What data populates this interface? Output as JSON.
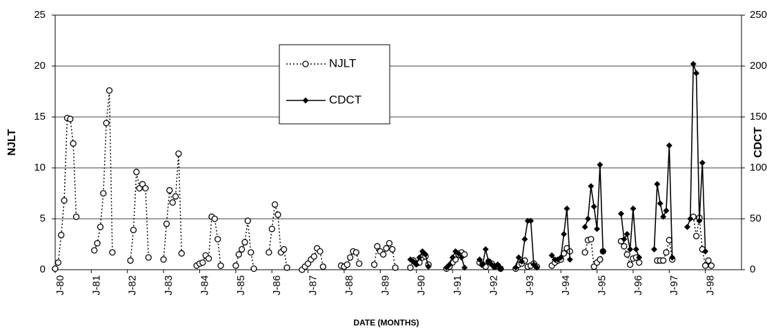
{
  "chart_data": {
    "type": "line",
    "xlabel": "DATE (MONTHS)",
    "ylabel": "NJLT",
    "y2label": "CDCT",
    "xlim": [
      0,
      228
    ],
    "xticks": [
      {
        "value": 0,
        "label": "J-80"
      },
      {
        "value": 12,
        "label": "J-81"
      },
      {
        "value": 24,
        "label": "J-82"
      },
      {
        "value": 36,
        "label": "J-83"
      },
      {
        "value": 48,
        "label": "J-84"
      },
      {
        "value": 60,
        "label": "J-85"
      },
      {
        "value": 72,
        "label": "J-86"
      },
      {
        "value": 84,
        "label": "J-87"
      },
      {
        "value": 96,
        "label": "J-88"
      },
      {
        "value": 108,
        "label": "J-89"
      },
      {
        "value": 120,
        "label": "J-90"
      },
      {
        "value": 132,
        "label": "J-91"
      },
      {
        "value": 144,
        "label": "J-92"
      },
      {
        "value": 156,
        "label": "J-93"
      },
      {
        "value": 168,
        "label": "J-94"
      },
      {
        "value": 180,
        "label": "J-95"
      },
      {
        "value": 192,
        "label": "J-96"
      },
      {
        "value": 204,
        "label": "J-97"
      },
      {
        "value": 216,
        "label": "J-98"
      }
    ],
    "ylim": [
      0,
      25
    ],
    "yticks": [
      0,
      5,
      10,
      15,
      20,
      25
    ],
    "y2lim": [
      0,
      250
    ],
    "y2ticks": [
      0,
      50,
      100,
      150,
      200,
      250
    ],
    "grid": true,
    "legend": "top-center",
    "series": [
      {
        "name": "NJLT",
        "color": "#000000",
        "line_style": "dotted",
        "marker": "circle",
        "x": [
          0,
          1,
          2,
          3,
          4,
          5,
          6,
          7,
          null,
          13,
          14,
          15,
          16,
          17,
          18,
          19,
          null,
          25,
          26,
          27,
          28,
          29,
          30,
          31,
          null,
          36,
          37,
          38,
          39,
          40,
          41,
          42,
          null,
          47,
          48,
          49,
          50,
          51,
          52,
          53,
          54,
          55,
          null,
          60,
          61,
          62,
          63,
          64,
          65,
          66,
          null,
          71,
          72,
          73,
          74,
          75,
          76,
          77,
          null,
          82,
          83,
          84,
          85,
          86,
          87,
          88,
          89,
          null,
          95,
          96,
          97,
          98,
          99,
          100,
          101,
          null,
          106,
          107,
          108,
          109,
          110,
          111,
          112,
          113,
          null,
          118,
          119,
          120,
          121,
          122,
          123,
          124,
          null,
          130,
          131,
          132,
          133,
          134,
          135,
          136,
          null,
          141,
          142,
          143,
          144,
          145,
          146,
          147,
          148,
          null,
          153,
          154,
          155,
          156,
          157,
          158,
          159,
          160,
          null,
          165,
          166,
          167,
          168,
          169,
          170,
          171,
          null,
          176,
          177,
          178,
          179,
          180,
          181,
          182,
          null,
          188,
          189,
          190,
          191,
          192,
          193,
          194,
          null,
          200,
          201,
          202,
          203,
          204,
          205,
          null,
          212,
          213,
          214,
          215,
          216,
          217,
          218
        ],
        "values": [
          0.1,
          0.7,
          3.4,
          6.8,
          14.9,
          14.8,
          12.4,
          5.2,
          null,
          1.9,
          2.6,
          4.2,
          7.5,
          14.4,
          17.6,
          1.7,
          null,
          0.9,
          3.9,
          9.6,
          8.0,
          8.4,
          8.0,
          1.2,
          null,
          1.0,
          4.5,
          7.8,
          6.6,
          7.2,
          11.4,
          1.6,
          null,
          0.4,
          0.6,
          0.7,
          1.4,
          1.1,
          5.2,
          5.0,
          3.0,
          0.4,
          null,
          0.4,
          1.5,
          2.0,
          2.7,
          4.8,
          1.7,
          0.1,
          null,
          1.7,
          4.0,
          6.4,
          5.4,
          1.7,
          2.0,
          0.2,
          null,
          0.0,
          0.3,
          0.6,
          1.0,
          1.3,
          2.1,
          1.8,
          0.3,
          null,
          0.4,
          0.3,
          0.5,
          1.2,
          1.8,
          1.7,
          0.6,
          null,
          0.5,
          2.3,
          1.8,
          1.5,
          2.1,
          2.6,
          2.0,
          0.2,
          null,
          0.2,
          0.9,
          0.6,
          0.7,
          1.2,
          1.3,
          0.5,
          null,
          0.1,
          0.3,
          0.7,
          1.0,
          1.5,
          1.7,
          1.5,
          null,
          0.7,
          0.5,
          0.3,
          0.8,
          0.6,
          0.3,
          0.4,
          0.1,
          null,
          0.1,
          0.5,
          0.6,
          0.9,
          0.3,
          0.4,
          0.6,
          0.3,
          null,
          0.4,
          0.7,
          0.9,
          1.0,
          1.6,
          2.1,
          1.8,
          null,
          1.7,
          2.9,
          3.0,
          0.3,
          0.7,
          1.0,
          1.8,
          null,
          2.8,
          2.3,
          1.5,
          0.5,
          1.1,
          1.2,
          0.7,
          null,
          0.9,
          0.9,
          0.9,
          1.7,
          2.9,
          1.0,
          null,
          5.2,
          3.3,
          5.1,
          2.0,
          0.4,
          0.9,
          0.4
        ]
      },
      {
        "name": "CDCT",
        "color": "#000000",
        "line_style": "solid",
        "marker": "diamond",
        "axis": "y2",
        "x": [
          118,
          119,
          120,
          121,
          122,
          123,
          124,
          null,
          130,
          131,
          132,
          133,
          134,
          135,
          136,
          null,
          141,
          142,
          143,
          144,
          145,
          146,
          147,
          148,
          null,
          153,
          154,
          155,
          156,
          157,
          158,
          159,
          160,
          null,
          165,
          166,
          167,
          168,
          169,
          170,
          171,
          null,
          176,
          177,
          178,
          179,
          180,
          181,
          182,
          null,
          188,
          189,
          190,
          191,
          192,
          193,
          194,
          null,
          199,
          200,
          201,
          202,
          203,
          204,
          205,
          null,
          210,
          211,
          212,
          213,
          214,
          215,
          216
        ],
        "values": [
          10,
          8,
          5,
          12,
          18,
          15,
          3,
          null,
          2,
          5,
          12,
          18,
          16,
          12,
          2,
          null,
          10,
          5,
          20,
          8,
          5,
          3,
          5,
          1,
          null,
          2,
          12,
          8,
          30,
          48,
          48,
          5,
          2,
          null,
          14,
          10,
          10,
          12,
          35,
          60,
          10,
          null,
          42,
          50,
          82,
          62,
          40,
          103,
          18,
          null,
          55,
          30,
          35,
          20,
          60,
          20,
          12,
          null,
          20,
          84,
          65,
          52,
          58,
          122,
          12,
          null,
          42,
          50,
          202,
          193,
          48,
          105,
          18
        ]
      }
    ]
  }
}
